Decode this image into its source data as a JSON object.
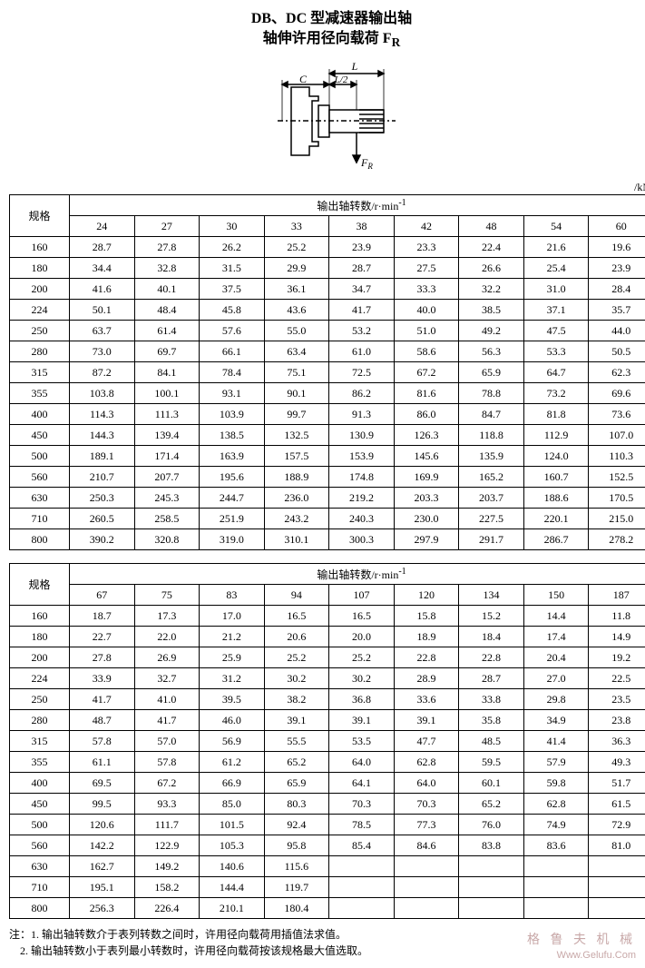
{
  "title_line1": "DB、DC 型减速器输出轴",
  "title_line2": "轴伸许用径向载荷 F",
  "title_sub": "R",
  "unit_label": "/kN",
  "diagram": {
    "L": "L",
    "L2": "L/2",
    "C": "C",
    "FR": "F",
    "FRsub": "R"
  },
  "table1": {
    "spec_header": "规格",
    "group_header": "输出轴转数/r·min",
    "group_header_exp": "-1",
    "cols": [
      "24",
      "27",
      "30",
      "33",
      "38",
      "42",
      "48",
      "54",
      "60"
    ],
    "rows": [
      {
        "s": "160",
        "v": [
          "28.7",
          "27.8",
          "26.2",
          "25.2",
          "23.9",
          "23.3",
          "22.4",
          "21.6",
          "19.6"
        ]
      },
      {
        "s": "180",
        "v": [
          "34.4",
          "32.8",
          "31.5",
          "29.9",
          "28.7",
          "27.5",
          "26.6",
          "25.4",
          "23.9"
        ]
      },
      {
        "s": "200",
        "v": [
          "41.6",
          "40.1",
          "37.5",
          "36.1",
          "34.7",
          "33.3",
          "32.2",
          "31.0",
          "28.4"
        ]
      },
      {
        "s": "224",
        "v": [
          "50.1",
          "48.4",
          "45.8",
          "43.6",
          "41.7",
          "40.0",
          "38.5",
          "37.1",
          "35.7"
        ]
      },
      {
        "s": "250",
        "v": [
          "63.7",
          "61.4",
          "57.6",
          "55.0",
          "53.2",
          "51.0",
          "49.2",
          "47.5",
          "44.0"
        ]
      },
      {
        "s": "280",
        "v": [
          "73.0",
          "69.7",
          "66.1",
          "63.4",
          "61.0",
          "58.6",
          "56.3",
          "53.3",
          "50.5"
        ]
      },
      {
        "s": "315",
        "v": [
          "87.2",
          "84.1",
          "78.4",
          "75.1",
          "72.5",
          "67.2",
          "65.9",
          "64.7",
          "62.3"
        ]
      },
      {
        "s": "355",
        "v": [
          "103.8",
          "100.1",
          "93.1",
          "90.1",
          "86.2",
          "81.6",
          "78.8",
          "73.2",
          "69.6"
        ]
      },
      {
        "s": "400",
        "v": [
          "114.3",
          "111.3",
          "103.9",
          "99.7",
          "91.3",
          "86.0",
          "84.7",
          "81.8",
          "73.6"
        ]
      },
      {
        "s": "450",
        "v": [
          "144.3",
          "139.4",
          "138.5",
          "132.5",
          "130.9",
          "126.3",
          "118.8",
          "112.9",
          "107.0"
        ]
      },
      {
        "s": "500",
        "v": [
          "189.1",
          "171.4",
          "163.9",
          "157.5",
          "153.9",
          "145.6",
          "135.9",
          "124.0",
          "110.3"
        ]
      },
      {
        "s": "560",
        "v": [
          "210.7",
          "207.7",
          "195.6",
          "188.9",
          "174.8",
          "169.9",
          "165.2",
          "160.7",
          "152.5"
        ]
      },
      {
        "s": "630",
        "v": [
          "250.3",
          "245.3",
          "244.7",
          "236.0",
          "219.2",
          "203.3",
          "203.7",
          "188.6",
          "170.5"
        ]
      },
      {
        "s": "710",
        "v": [
          "260.5",
          "258.5",
          "251.9",
          "243.2",
          "240.3",
          "230.0",
          "227.5",
          "220.1",
          "215.0"
        ]
      },
      {
        "s": "800",
        "v": [
          "390.2",
          "320.8",
          "319.0",
          "310.1",
          "300.3",
          "297.9",
          "291.7",
          "286.7",
          "278.2"
        ]
      }
    ]
  },
  "table2": {
    "spec_header": "规格",
    "group_header": "输出轴转数/r·min",
    "group_header_exp": "-1",
    "cols": [
      "67",
      "75",
      "83",
      "94",
      "107",
      "120",
      "134",
      "150",
      "187"
    ],
    "rows": [
      {
        "s": "160",
        "v": [
          "18.7",
          "17.3",
          "17.0",
          "16.5",
          "16.5",
          "15.8",
          "15.2",
          "14.4",
          "11.8"
        ]
      },
      {
        "s": "180",
        "v": [
          "22.7",
          "22.0",
          "21.2",
          "20.6",
          "20.0",
          "18.9",
          "18.4",
          "17.4",
          "14.9"
        ]
      },
      {
        "s": "200",
        "v": [
          "27.8",
          "26.9",
          "25.9",
          "25.2",
          "25.2",
          "22.8",
          "22.8",
          "20.4",
          "19.2"
        ]
      },
      {
        "s": "224",
        "v": [
          "33.9",
          "32.7",
          "31.2",
          "30.2",
          "30.2",
          "28.9",
          "28.7",
          "27.0",
          "22.5"
        ]
      },
      {
        "s": "250",
        "v": [
          "41.7",
          "41.0",
          "39.5",
          "38.2",
          "36.8",
          "33.6",
          "33.8",
          "29.8",
          "23.5"
        ]
      },
      {
        "s": "280",
        "v": [
          "48.7",
          "41.7",
          "46.0",
          "39.1",
          "39.1",
          "39.1",
          "35.8",
          "34.9",
          "23.8"
        ]
      },
      {
        "s": "315",
        "v": [
          "57.8",
          "57.0",
          "56.9",
          "55.5",
          "53.5",
          "47.7",
          "48.5",
          "41.4",
          "36.3"
        ]
      },
      {
        "s": "355",
        "v": [
          "61.1",
          "57.8",
          "61.2",
          "65.2",
          "64.0",
          "62.8",
          "59.5",
          "57.9",
          "49.3"
        ]
      },
      {
        "s": "400",
        "v": [
          "69.5",
          "67.2",
          "66.9",
          "65.9",
          "64.1",
          "64.0",
          "60.1",
          "59.8",
          "51.7"
        ]
      },
      {
        "s": "450",
        "v": [
          "99.5",
          "93.3",
          "85.0",
          "80.3",
          "70.3",
          "70.3",
          "65.2",
          "62.8",
          "61.5"
        ]
      },
      {
        "s": "500",
        "v": [
          "120.6",
          "111.7",
          "101.5",
          "92.4",
          "78.5",
          "77.3",
          "76.0",
          "74.9",
          "72.9"
        ]
      },
      {
        "s": "560",
        "v": [
          "142.2",
          "122.9",
          "105.3",
          "95.8",
          "85.4",
          "84.6",
          "83.8",
          "83.6",
          "81.0"
        ]
      },
      {
        "s": "630",
        "v": [
          "162.7",
          "149.2",
          "140.6",
          "115.6",
          "",
          "",
          "",
          "",
          ""
        ]
      },
      {
        "s": "710",
        "v": [
          "195.1",
          "158.2",
          "144.4",
          "119.7",
          "",
          "",
          "",
          "",
          ""
        ]
      },
      {
        "s": "800",
        "v": [
          "256.3",
          "226.4",
          "210.1",
          "180.4",
          "",
          "",
          "",
          "",
          ""
        ]
      }
    ]
  },
  "notes": {
    "prefix": "注：",
    "n1": "1. 输出轴转数介于表列转数之间时，许用径向载荷用插值法求值。",
    "n2": "2. 输出轴转数小于表列最小转数时，许用径向载荷按该规格最大值选取。"
  },
  "watermark": "格 鲁 夫 机 械",
  "watermark_url": "Www.Gelufu.Com"
}
